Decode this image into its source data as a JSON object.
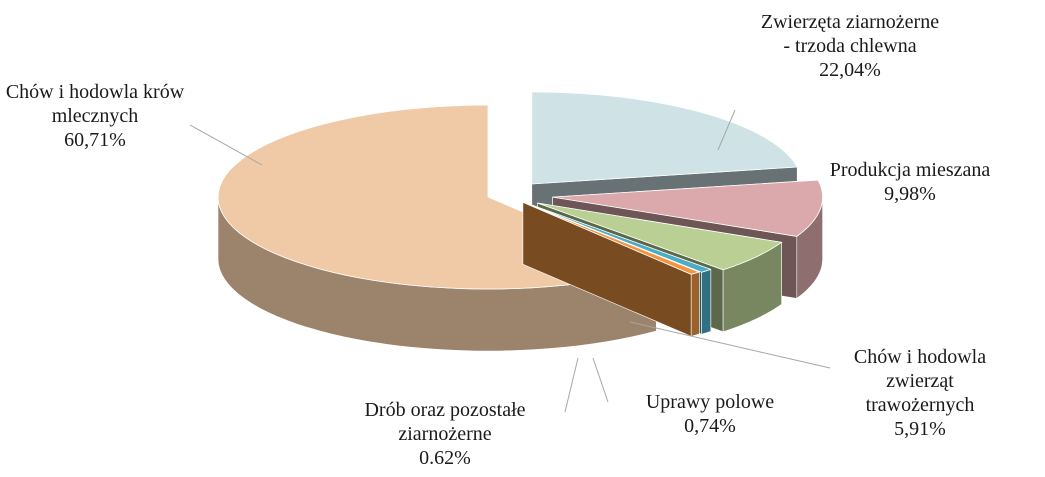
{
  "chart_data": {
    "type": "pie3d",
    "categories": [
      "Zwierzęta ziarnożerne - trzoda chlewna",
      "Produkcja mieszana",
      "Chów i hodowla zwierząt trawożernych",
      "Uprawy polowe",
      "Drób oraz pozostałe ziarnożerne",
      "Chów i hodowla krów mlecznych"
    ],
    "values": [
      22.04,
      9.98,
      5.91,
      0.74,
      0.62,
      60.71
    ],
    "value_labels": [
      "22,04%",
      "9,98%",
      "5,91%",
      "0,74%",
      "0.62%",
      "60,71%"
    ],
    "colors": [
      "#cfe2e6",
      "#dba9ab",
      "#b9cf93",
      "#4bacc6",
      "#f29541",
      "#f0c9a6"
    ]
  }
}
